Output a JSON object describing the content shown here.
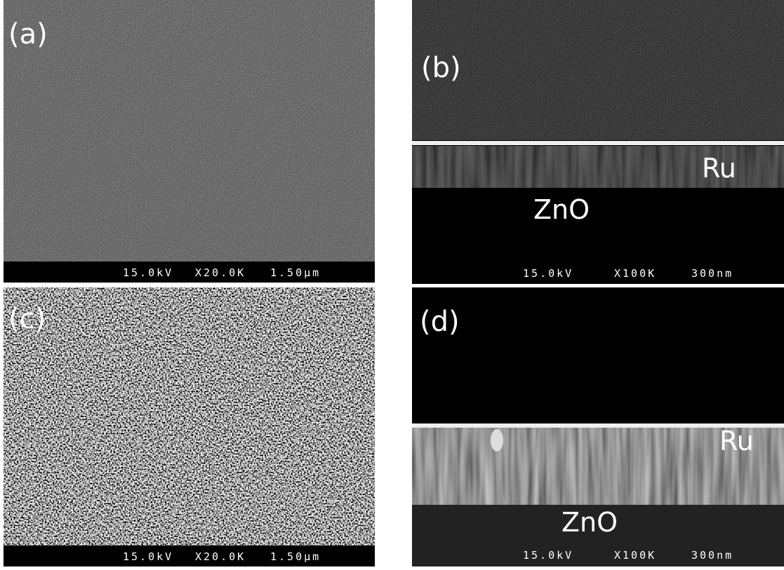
{
  "panels": [
    {
      "label": "(a)",
      "voltage": "15.0kV",
      "magnification": "X20.0K",
      "scale": "1.50μm"
    },
    {
      "label": "(b)",
      "voltage": "15.0kV",
      "magnification": "X100K",
      "scale": "300nm",
      "layers": [
        "Ru",
        "ZnO"
      ]
    },
    {
      "label": "(c)",
      "voltage": "15.0kV",
      "magnification": "X20.0K",
      "scale": "1.50μm"
    },
    {
      "label": "(d)",
      "voltage": "15.0kV",
      "magnification": "X100K",
      "scale": "300nm",
      "layers": [
        "Ru",
        "ZnO"
      ]
    }
  ]
}
